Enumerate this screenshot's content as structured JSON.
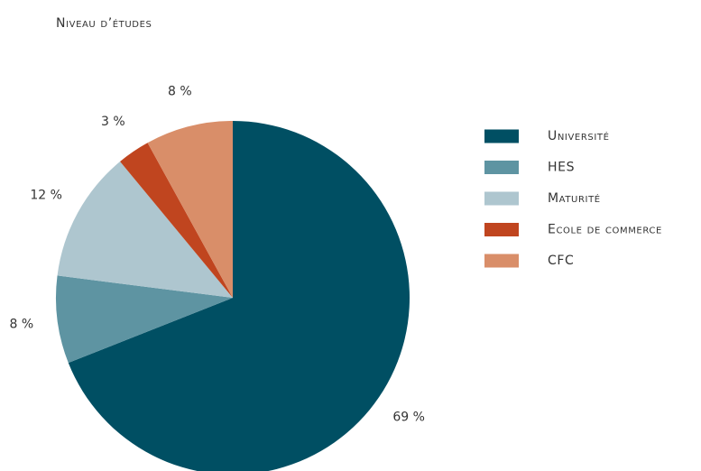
{
  "chart_data": {
    "type": "pie",
    "title": "Niveau d’études",
    "categories": [
      "Université",
      "HES",
      "Maturité",
      "Ecole de commerce",
      "CFC"
    ],
    "values": [
      69,
      8,
      12,
      3,
      8
    ],
    "value_labels": [
      "69 %",
      "8 %",
      "12 %",
      "3 %",
      "8 %"
    ],
    "colors": [
      "#004f63",
      "#5e94a2",
      "#aec6cf",
      "#c0451f",
      "#d98e69"
    ],
    "legend": "right"
  }
}
